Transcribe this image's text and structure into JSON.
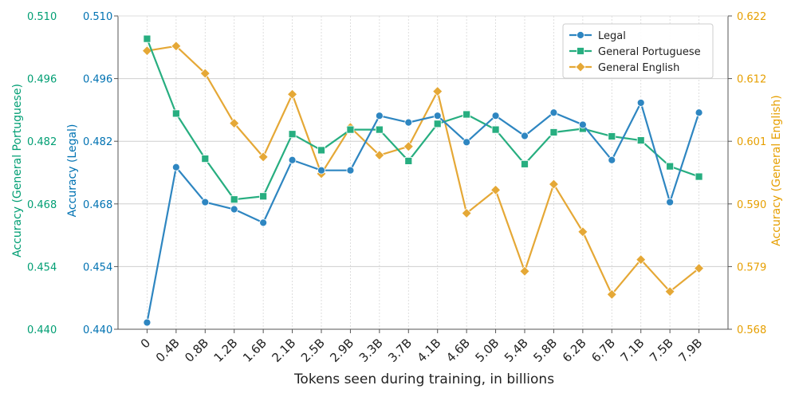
{
  "chart_data": {
    "type": "line",
    "xlabel": "Tokens seen during training, in billions",
    "categories": [
      "0",
      "0.4B",
      "0.8B",
      "1.2B",
      "1.6B",
      "2.1B",
      "2.5B",
      "2.9B",
      "3.3B",
      "3.7B",
      "4.1B",
      "4.6B",
      "5.0B",
      "5.4B",
      "5.8B",
      "6.2B",
      "6.7B",
      "7.1B",
      "7.5B",
      "7.9B"
    ],
    "axes": {
      "left_outer": {
        "label": "Accuracy (General Portuguese)",
        "range": [
          0.44,
          0.51
        ],
        "ticks": [
          "0.440",
          "0.454",
          "0.468",
          "0.482",
          "0.496",
          "0.510"
        ],
        "color": "#009e73"
      },
      "left_inner": {
        "label": "Accuracy (Legal)",
        "range": [
          0.44,
          0.51
        ],
        "ticks": [
          "0.440",
          "0.454",
          "0.468",
          "0.482",
          "0.496",
          "0.510"
        ],
        "color": "#0072b2"
      },
      "right": {
        "label": "Accuracy (General English)",
        "range": [
          0.568,
          0.622
        ],
        "ticks": [
          "0.568",
          "0.579",
          "0.590",
          "0.601",
          "0.612",
          "0.622"
        ],
        "color": "#e69f00"
      }
    },
    "grid": true,
    "legend_position": "top-right",
    "series": [
      {
        "name": "Legal",
        "axis": "left_inner",
        "marker": "circle",
        "color": "#2e86c1",
        "values": [
          0.4415,
          0.4762,
          0.4684,
          0.4668,
          0.4638,
          0.4778,
          0.4755,
          0.4755,
          0.4877,
          0.4862,
          0.4877,
          0.4818,
          0.4877,
          0.4832,
          0.4884,
          0.4857,
          0.4778,
          0.4906,
          0.4684,
          0.4884
        ]
      },
      {
        "name": "General Portuguese",
        "axis": "left_outer",
        "marker": "square",
        "color": "#27ae80",
        "values": [
          0.5049,
          0.4882,
          0.4781,
          0.469,
          0.4697,
          0.4836,
          0.48,
          0.4846,
          0.4846,
          0.4776,
          0.4859,
          0.488,
          0.4846,
          0.4769,
          0.484,
          0.4848,
          0.4831,
          0.4822,
          0.4764,
          0.4741
        ]
      },
      {
        "name": "General English",
        "axis": "right",
        "marker": "diamond",
        "color": "#e5a836",
        "values": [
          0.616,
          0.6168,
          0.6121,
          0.6035,
          0.5977,
          0.6085,
          0.5948,
          0.6028,
          0.598,
          0.5995,
          0.609,
          0.588,
          0.592,
          0.578,
          0.593,
          0.5848,
          0.574,
          0.58,
          0.5745,
          0.5785
        ]
      }
    ]
  }
}
